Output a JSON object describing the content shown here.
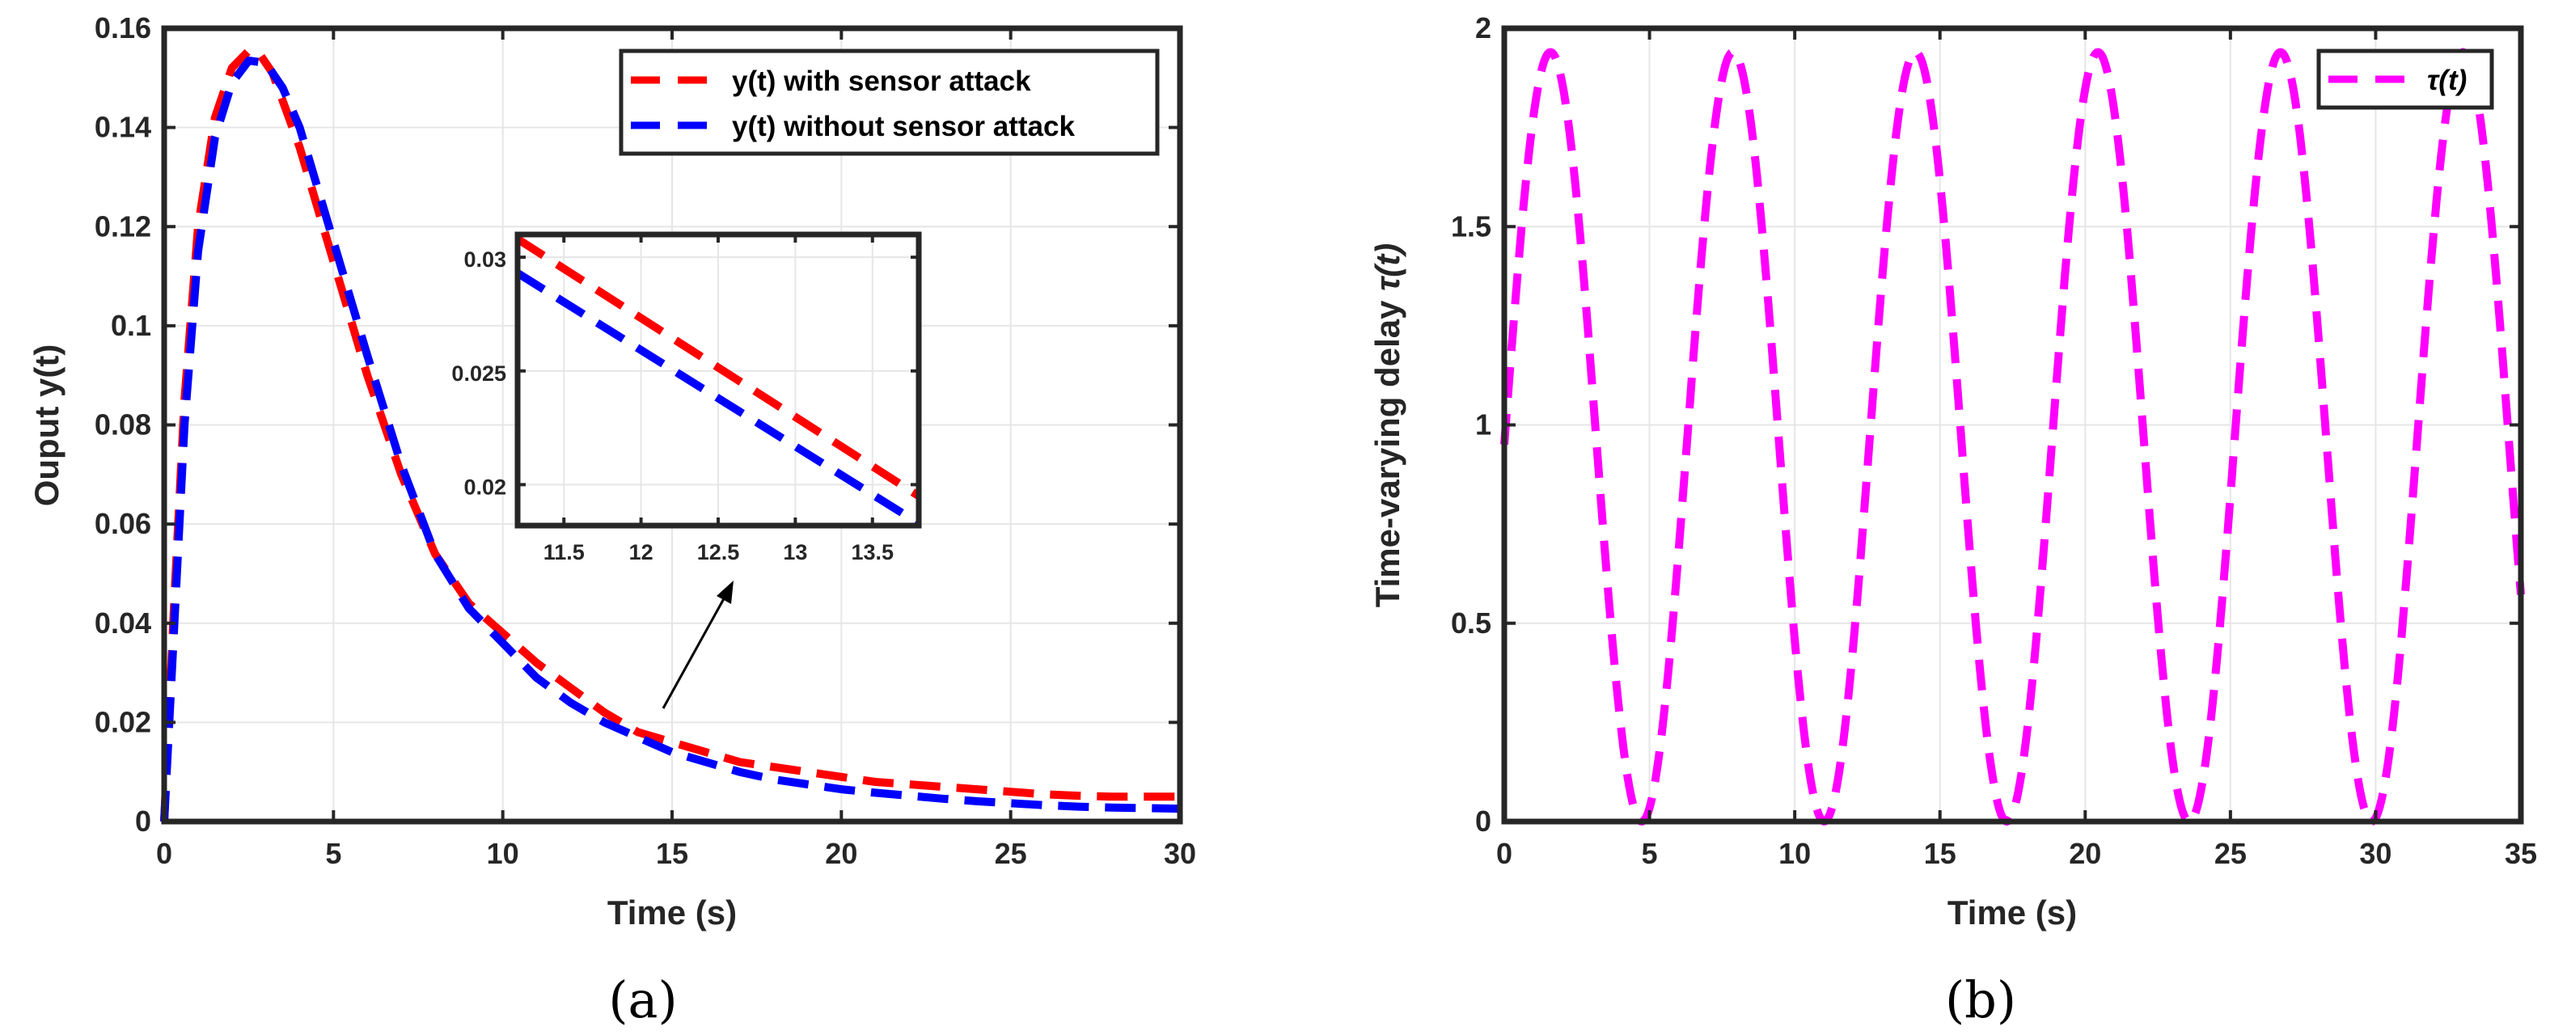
{
  "chart_data": [
    {
      "type": "line",
      "caption": "(a)",
      "title": "",
      "xlabel": "Time (s)",
      "ylabel": "Ouput y(t)",
      "xlim": [
        0,
        30
      ],
      "ylim": [
        0,
        0.16
      ],
      "xticks": [
        0,
        5,
        10,
        15,
        20,
        25,
        30
      ],
      "yticks": [
        0,
        0.02,
        0.04,
        0.06,
        0.08,
        0.1,
        0.12,
        0.14,
        0.16
      ],
      "grid": true,
      "legend_position": "top-right",
      "series": [
        {
          "name": "y(t) with sensor attack",
          "color": "#ff0000",
          "x": [
            0,
            0.3,
            0.6,
            1.0,
            1.5,
            2.0,
            2.5,
            2.8,
            3.2,
            4.0,
            5.0,
            6.0,
            7.0,
            8.0,
            9.0,
            10.0,
            11.0,
            12.0,
            13.0,
            14.0,
            15.0,
            16.0,
            17.0,
            18.0,
            19.0,
            20.0,
            21.0,
            22.0,
            23.0,
            24.0,
            25.0,
            26.0,
            27.0,
            28.0,
            29.0,
            30.0
          ],
          "y": [
            0,
            0.045,
            0.085,
            0.12,
            0.142,
            0.152,
            0.1555,
            0.155,
            0.151,
            0.136,
            0.113,
            0.09,
            0.07,
            0.054,
            0.044,
            0.038,
            0.032,
            0.027,
            0.022,
            0.018,
            0.016,
            0.014,
            0.012,
            0.011,
            0.01,
            0.009,
            0.008,
            0.0075,
            0.007,
            0.0065,
            0.006,
            0.0055,
            0.0052,
            0.005,
            0.005,
            0.005
          ]
        },
        {
          "name": "y(t) without sensor attack",
          "color": "#0000ff",
          "x": [
            0,
            0.3,
            0.6,
            1.0,
            1.5,
            2.0,
            2.5,
            3.0,
            3.5,
            4.0,
            5.0,
            6.0,
            7.0,
            8.0,
            9.0,
            10.0,
            11.0,
            12.0,
            13.0,
            14.0,
            15.0,
            16.0,
            17.0,
            18.0,
            19.0,
            20.0,
            21.0,
            22.0,
            23.0,
            24.0,
            25.0,
            26.0,
            27.0,
            28.0,
            29.0,
            30.0
          ],
          "y": [
            0,
            0.04,
            0.08,
            0.115,
            0.138,
            0.149,
            0.1535,
            0.153,
            0.148,
            0.14,
            0.117,
            0.094,
            0.072,
            0.054,
            0.043,
            0.036,
            0.029,
            0.024,
            0.02,
            0.017,
            0.014,
            0.012,
            0.01,
            0.0085,
            0.0075,
            0.0065,
            0.0058,
            0.0052,
            0.0046,
            0.0041,
            0.0037,
            0.0033,
            0.003,
            0.0028,
            0.0027,
            0.0026
          ]
        }
      ],
      "inset": {
        "xlim": [
          11.2,
          13.8
        ],
        "ylim": [
          0.0182,
          0.031
        ],
        "xticks": [
          11.5,
          12,
          12.5,
          13,
          13.5
        ],
        "yticks": [
          0.02,
          0.025,
          0.03
        ],
        "series": [
          {
            "name": "y(t) with sensor attack",
            "x": [
              11.2,
              13.8
            ],
            "y": [
              0.0308,
              0.0195
            ]
          },
          {
            "name": "y(t) without sensor attack",
            "x": [
              11.2,
              13.8
            ],
            "y": [
              0.0293,
              0.0183
            ]
          }
        ]
      }
    },
    {
      "type": "line",
      "caption": "(b)",
      "title": "",
      "xlabel": "Time (s)",
      "ylabel_main": "Time-varying delay ",
      "ylabel_symbol": "τ(t)",
      "xlim": [
        0,
        35
      ],
      "ylim": [
        0,
        2
      ],
      "xticks": [
        0,
        5,
        10,
        15,
        20,
        25,
        30,
        35
      ],
      "yticks": [
        0,
        0.5,
        1,
        1.5,
        2
      ],
      "grid": true,
      "legend_position": "top-right",
      "series": [
        {
          "name": "τ(t)",
          "color": "#ff00ff",
          "function": "0.97 * (1 + sin(t - 0.02))",
          "t_range": [
            0,
            35
          ]
        }
      ]
    }
  ]
}
